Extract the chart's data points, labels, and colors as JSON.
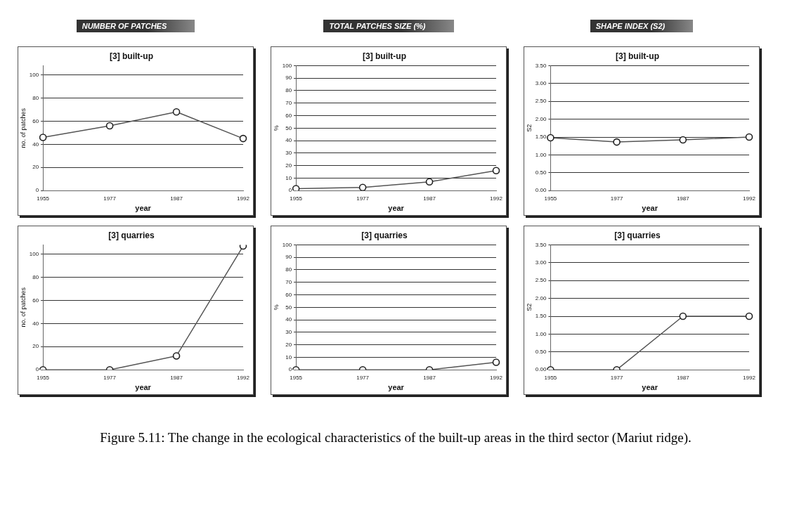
{
  "chart_data": [
    {
      "type": "line",
      "title": "NUMBER OF PATCHES",
      "subtitle": "[3] built-up",
      "categories": [
        "1955",
        "1977",
        "1987",
        "1992"
      ],
      "series": [
        {
          "color": "#555555",
          "values": [
            46,
            56,
            68,
            45
          ]
        }
      ],
      "xlabel": "year",
      "ylabel": "no. of patches",
      "ylim": [
        0,
        108
      ],
      "yticks": [
        0,
        20,
        40,
        60,
        80,
        100
      ],
      "grid": "y",
      "marker": "circle",
      "line_style": "solid"
    },
    {
      "type": "line",
      "title": "TOTAL PATCHES SIZE (%)",
      "subtitle": "[3] built-up",
      "categories": [
        "1955",
        "1977",
        "1987",
        "1992"
      ],
      "series": [
        {
          "color": "#555555",
          "values": [
            1.5,
            2.5,
            7,
            16
          ]
        }
      ],
      "xlabel": "year",
      "ylabel": "%",
      "ylim": [
        0,
        100
      ],
      "yticks": [
        0,
        10,
        20,
        30,
        40,
        50,
        60,
        70,
        80,
        90,
        100
      ],
      "grid": "y",
      "marker": "circle",
      "line_style": "solid"
    },
    {
      "type": "line",
      "title": "SHAPE INDEX (S2)",
      "subtitle": "[3] built-up",
      "categories": [
        "1955",
        "1977",
        "1987",
        "1992"
      ],
      "series": [
        {
          "color": "#555555",
          "values": [
            1.48,
            1.36,
            1.42,
            1.5
          ]
        }
      ],
      "xlabel": "year",
      "ylabel": "S2",
      "ylim": [
        0,
        3.5
      ],
      "yticks": [
        {
          "value": 0,
          "label": "0.00"
        },
        {
          "value": 0.5,
          "label": "0.50"
        },
        {
          "value": 1,
          "label": "1.00"
        },
        {
          "value": 1.5,
          "label": "1.50"
        },
        {
          "value": 2,
          "label": "2.00"
        },
        {
          "value": 2.5,
          "label": "2.50"
        },
        {
          "value": 3,
          "label": "3.00"
        },
        {
          "value": 3.5,
          "label": "3.50"
        }
      ],
      "grid": "y",
      "marker": "circle",
      "line_style": "solid"
    },
    {
      "type": "line",
      "title": "[3] quarries",
      "categories": [
        "1955",
        "1977",
        "1987",
        "1992"
      ],
      "series": [
        {
          "color": "#555555",
          "values": [
            0,
            0,
            12,
            107
          ]
        }
      ],
      "xlabel": "year",
      "ylabel": "no. of patches",
      "ylim": [
        0,
        108
      ],
      "yticks": [
        0,
        20,
        40,
        60,
        80,
        100
      ],
      "grid": "y",
      "marker": "circle",
      "line_style": "solid"
    },
    {
      "type": "line",
      "title": "[3] quarries",
      "categories": [
        "1955",
        "1977",
        "1987",
        "1992"
      ],
      "series": [
        {
          "color": "#555555",
          "values": [
            0,
            0,
            0,
            6
          ]
        }
      ],
      "xlabel": "year",
      "ylabel": "%",
      "ylim": [
        0,
        100
      ],
      "yticks": [
        0,
        10,
        20,
        30,
        40,
        50,
        60,
        70,
        80,
        90,
        100
      ],
      "grid": "y",
      "marker": "circle",
      "line_style": "solid",
      "annotations": [
        "Figure 5.11: The change in the ecological characteristics of the built-up areas in the third sector (Mariut ridge)."
      ]
    },
    {
      "type": "line",
      "title": "[3] quarries",
      "categories": [
        "1955",
        "1977",
        "1987",
        "1992"
      ],
      "series": [
        {
          "color": "#555555",
          "values": [
            0,
            0,
            1.5,
            1.5
          ]
        }
      ],
      "xlabel": "year",
      "ylabel": "S2",
      "ylim": [
        0,
        3.5
      ],
      "yticks": [
        {
          "value": 0,
          "label": "0.00"
        },
        {
          "value": 0.5,
          "label": "0.50"
        },
        {
          "value": 1,
          "label": "1.00"
        },
        {
          "value": 1.5,
          "label": "1.50"
        },
        {
          "value": 2,
          "label": "2.00"
        },
        {
          "value": 2.5,
          "label": "2.50"
        },
        {
          "value": 3,
          "label": "3.00"
        },
        {
          "value": 3.5,
          "label": "3.50"
        }
      ],
      "grid": "y",
      "marker": "circle",
      "line_style": "solid"
    }
  ]
}
